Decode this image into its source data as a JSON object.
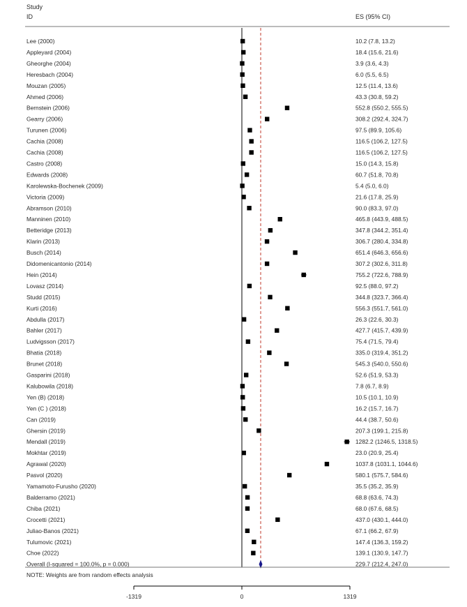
{
  "header": {
    "study_line1": "Study",
    "study_line2": "ID",
    "es_header": "ES (95% CI)"
  },
  "note": "NOTE: Weights are from random effects analysis",
  "colors": {
    "marker": "#000000",
    "overall_diamond": "#1a1a8c",
    "overall_line": "#c0392b",
    "axis": "#000000"
  },
  "chart_data": {
    "type": "forest",
    "x_ticks": [
      -1319,
      0,
      1319
    ],
    "xlim": [
      -1319,
      1319
    ],
    "null_line": 0,
    "overall_line_style": "dashed",
    "studies": [
      {
        "label": "Lee (2000)",
        "es": 10.2,
        "lo": 7.8,
        "hi": 13.2,
        "ci_text": "10.2 (7.8, 13.2)"
      },
      {
        "label": "Appleyard (2004)",
        "es": 18.4,
        "lo": 15.6,
        "hi": 21.6,
        "ci_text": "18.4 (15.6, 21.6)"
      },
      {
        "label": "Gheorghe (2004)",
        "es": 3.9,
        "lo": 3.6,
        "hi": 4.3,
        "ci_text": "3.9 (3.6, 4.3)"
      },
      {
        "label": "Heresbach (2004)",
        "es": 6.0,
        "lo": 5.5,
        "hi": 6.5,
        "ci_text": "6.0 (5.5, 6.5)"
      },
      {
        "label": "Mouzan (2005)",
        "es": 12.5,
        "lo": 11.4,
        "hi": 13.6,
        "ci_text": "12.5 (11.4, 13.6)"
      },
      {
        "label": "Ahmed (2006)",
        "es": 43.3,
        "lo": 30.8,
        "hi": 59.2,
        "ci_text": "43.3 (30.8, 59.2)"
      },
      {
        "label": "Bernstein (2006)",
        "es": 552.8,
        "lo": 550.2,
        "hi": 555.5,
        "ci_text": "552.8 (550.2, 555.5)"
      },
      {
        "label": "Gearry (2006)",
        "es": 308.2,
        "lo": 292.4,
        "hi": 324.7,
        "ci_text": "308.2 (292.4, 324.7)"
      },
      {
        "label": "Turunen (2006)",
        "es": 97.5,
        "lo": 89.9,
        "hi": 105.6,
        "ci_text": "97.5 (89.9, 105.6)"
      },
      {
        "label": "Cachia (2008)",
        "es": 116.5,
        "lo": 106.2,
        "hi": 127.5,
        "ci_text": "116.5 (106.2, 127.5)"
      },
      {
        "label": "Cachia (2008)",
        "es": 116.5,
        "lo": 106.2,
        "hi": 127.5,
        "ci_text": "116.5 (106.2, 127.5)"
      },
      {
        "label": "Castro (2008)",
        "es": 15.0,
        "lo": 14.3,
        "hi": 15.8,
        "ci_text": "15.0 (14.3, 15.8)"
      },
      {
        "label": "Edwards (2008)",
        "es": 60.7,
        "lo": 51.8,
        "hi": 70.8,
        "ci_text": "60.7 (51.8, 70.8)"
      },
      {
        "label": "Karolewska-Bochenek (2009)",
        "es": 5.4,
        "lo": 5.0,
        "hi": 6.0,
        "ci_text": "5.4 (5.0, 6.0)"
      },
      {
        "label": "Victoria (2009)",
        "es": 21.6,
        "lo": 17.8,
        "hi": 25.9,
        "ci_text": "21.6 (17.8, 25.9)"
      },
      {
        "label": "Abramson (2010)",
        "es": 90.0,
        "lo": 83.3,
        "hi": 97.0,
        "ci_text": "90.0 (83.3, 97.0)"
      },
      {
        "label": "Manninen (2010)",
        "es": 465.8,
        "lo": 443.9,
        "hi": 488.5,
        "ci_text": "465.8 (443.9, 488.5)"
      },
      {
        "label": "Betteridge (2013)",
        "es": 347.8,
        "lo": 344.2,
        "hi": 351.4,
        "ci_text": "347.8 (344.2, 351.4)"
      },
      {
        "label": "Klarin (2013)",
        "es": 306.7,
        "lo": 280.4,
        "hi": 334.8,
        "ci_text": "306.7 (280.4, 334.8)"
      },
      {
        "label": "Busch (2014)",
        "es": 651.4,
        "lo": 646.3,
        "hi": 656.6,
        "ci_text": "651.4 (646.3, 656.6)"
      },
      {
        "label": "Didomenicantonio (2014)",
        "es": 307.2,
        "lo": 302.6,
        "hi": 311.8,
        "ci_text": "307.2 (302.6, 311.8)"
      },
      {
        "label": "Hein (2014)",
        "es": 755.2,
        "lo": 722.6,
        "hi": 788.9,
        "ci_text": "755.2 (722.6, 788.9)"
      },
      {
        "label": "Lovasz (2014)",
        "es": 92.5,
        "lo": 88.0,
        "hi": 97.2,
        "ci_text": "92.5 (88.0, 97.2)"
      },
      {
        "label": "Studd (2015)",
        "es": 344.8,
        "lo": 323.7,
        "hi": 366.4,
        "ci_text": "344.8 (323.7, 366.4)"
      },
      {
        "label": "Kurti (2016)",
        "es": 556.3,
        "lo": 551.7,
        "hi": 561.0,
        "ci_text": "556.3 (551.7, 561.0)"
      },
      {
        "label": "Abdulla (2017)",
        "es": 26.3,
        "lo": 22.6,
        "hi": 30.3,
        "ci_text": "26.3 (22.6, 30.3)"
      },
      {
        "label": "Bahler (2017)",
        "es": 427.7,
        "lo": 415.7,
        "hi": 439.9,
        "ci_text": "427.7 (415.7, 439.9)"
      },
      {
        "label": "Ludvigsson (2017)",
        "es": 75.4,
        "lo": 71.5,
        "hi": 79.4,
        "ci_text": "75.4 (71.5, 79.4)"
      },
      {
        "label": "Bhatia (2018)",
        "es": 335.0,
        "lo": 319.4,
        "hi": 351.2,
        "ci_text": "335.0 (319.4, 351.2)"
      },
      {
        "label": "Brunet (2018)",
        "es": 545.3,
        "lo": 540.0,
        "hi": 550.6,
        "ci_text": "545.3 (540.0, 550.6)"
      },
      {
        "label": "Gasparini (2018)",
        "es": 52.6,
        "lo": 51.9,
        "hi": 53.3,
        "ci_text": "52.6 (51.9, 53.3)"
      },
      {
        "label": "Kalubowila (2018)",
        "es": 7.8,
        "lo": 6.7,
        "hi": 8.9,
        "ci_text": "7.8 (6.7, 8.9)"
      },
      {
        "label": "Yen (B) (2018)",
        "es": 10.5,
        "lo": 10.1,
        "hi": 10.9,
        "ci_text": "10.5 (10.1, 10.9)"
      },
      {
        "label": "Yen (C ) (2018)",
        "es": 16.2,
        "lo": 15.7,
        "hi": 16.7,
        "ci_text": "16.2 (15.7, 16.7)"
      },
      {
        "label": "Can (2019)",
        "es": 44.4,
        "lo": 38.7,
        "hi": 50.6,
        "ci_text": "44.4 (38.7, 50.6)"
      },
      {
        "label": "Ghersin (2019)",
        "es": 207.3,
        "lo": 199.1,
        "hi": 215.8,
        "ci_text": "207.3 (199.1, 215.8)"
      },
      {
        "label": "Mendall (2019)",
        "es": 1282.2,
        "lo": 1246.5,
        "hi": 1318.5,
        "ci_text": "1282.2 (1246.5, 1318.5)"
      },
      {
        "label": "Mokhtar (2019)",
        "es": 23.0,
        "lo": 20.9,
        "hi": 25.4,
        "ci_text": "23.0 (20.9, 25.4)"
      },
      {
        "label": "Agrawal (2020)",
        "es": 1037.8,
        "lo": 1031.1,
        "hi": 1044.6,
        "ci_text": "1037.8 (1031.1, 1044.6)"
      },
      {
        "label": "Pasvol (2020)",
        "es": 580.1,
        "lo": 575.7,
        "hi": 584.6,
        "ci_text": "580.1 (575.7, 584.6)"
      },
      {
        "label": "Yamamoto-Furusho (2020)",
        "es": 35.5,
        "lo": 35.2,
        "hi": 35.9,
        "ci_text": "35.5 (35.2, 35.9)"
      },
      {
        "label": "Balderramo (2021)",
        "es": 68.8,
        "lo": 63.6,
        "hi": 74.3,
        "ci_text": "68.8 (63.6, 74.3)"
      },
      {
        "label": "Chiba (2021)",
        "es": 68.0,
        "lo": 67.6,
        "hi": 68.5,
        "ci_text": "68.0 (67.6, 68.5)"
      },
      {
        "label": "Crocetti (2021)",
        "es": 437.0,
        "lo": 430.1,
        "hi": 444.0,
        "ci_text": "437.0 (430.1, 444.0)"
      },
      {
        "label": "Juliao-Banos (2021)",
        "es": 67.1,
        "lo": 66.2,
        "hi": 67.9,
        "ci_text": "67.1 (66.2, 67.9)"
      },
      {
        "label": "Tulumovic (2021)",
        "es": 147.4,
        "lo": 136.3,
        "hi": 159.2,
        "ci_text": "147.4 (136.3, 159.2)"
      },
      {
        "label": "Choe (2022)",
        "es": 139.1,
        "lo": 130.9,
        "hi": 147.7,
        "ci_text": "139.1 (130.9, 147.7)"
      }
    ],
    "overall": {
      "label": "Overall  (I-squared = 100.0%, p = 0.000)",
      "es": 229.7,
      "lo": 212.4,
      "hi": 247.0,
      "ci_text": "229.7 (212.4, 247.0)"
    }
  }
}
